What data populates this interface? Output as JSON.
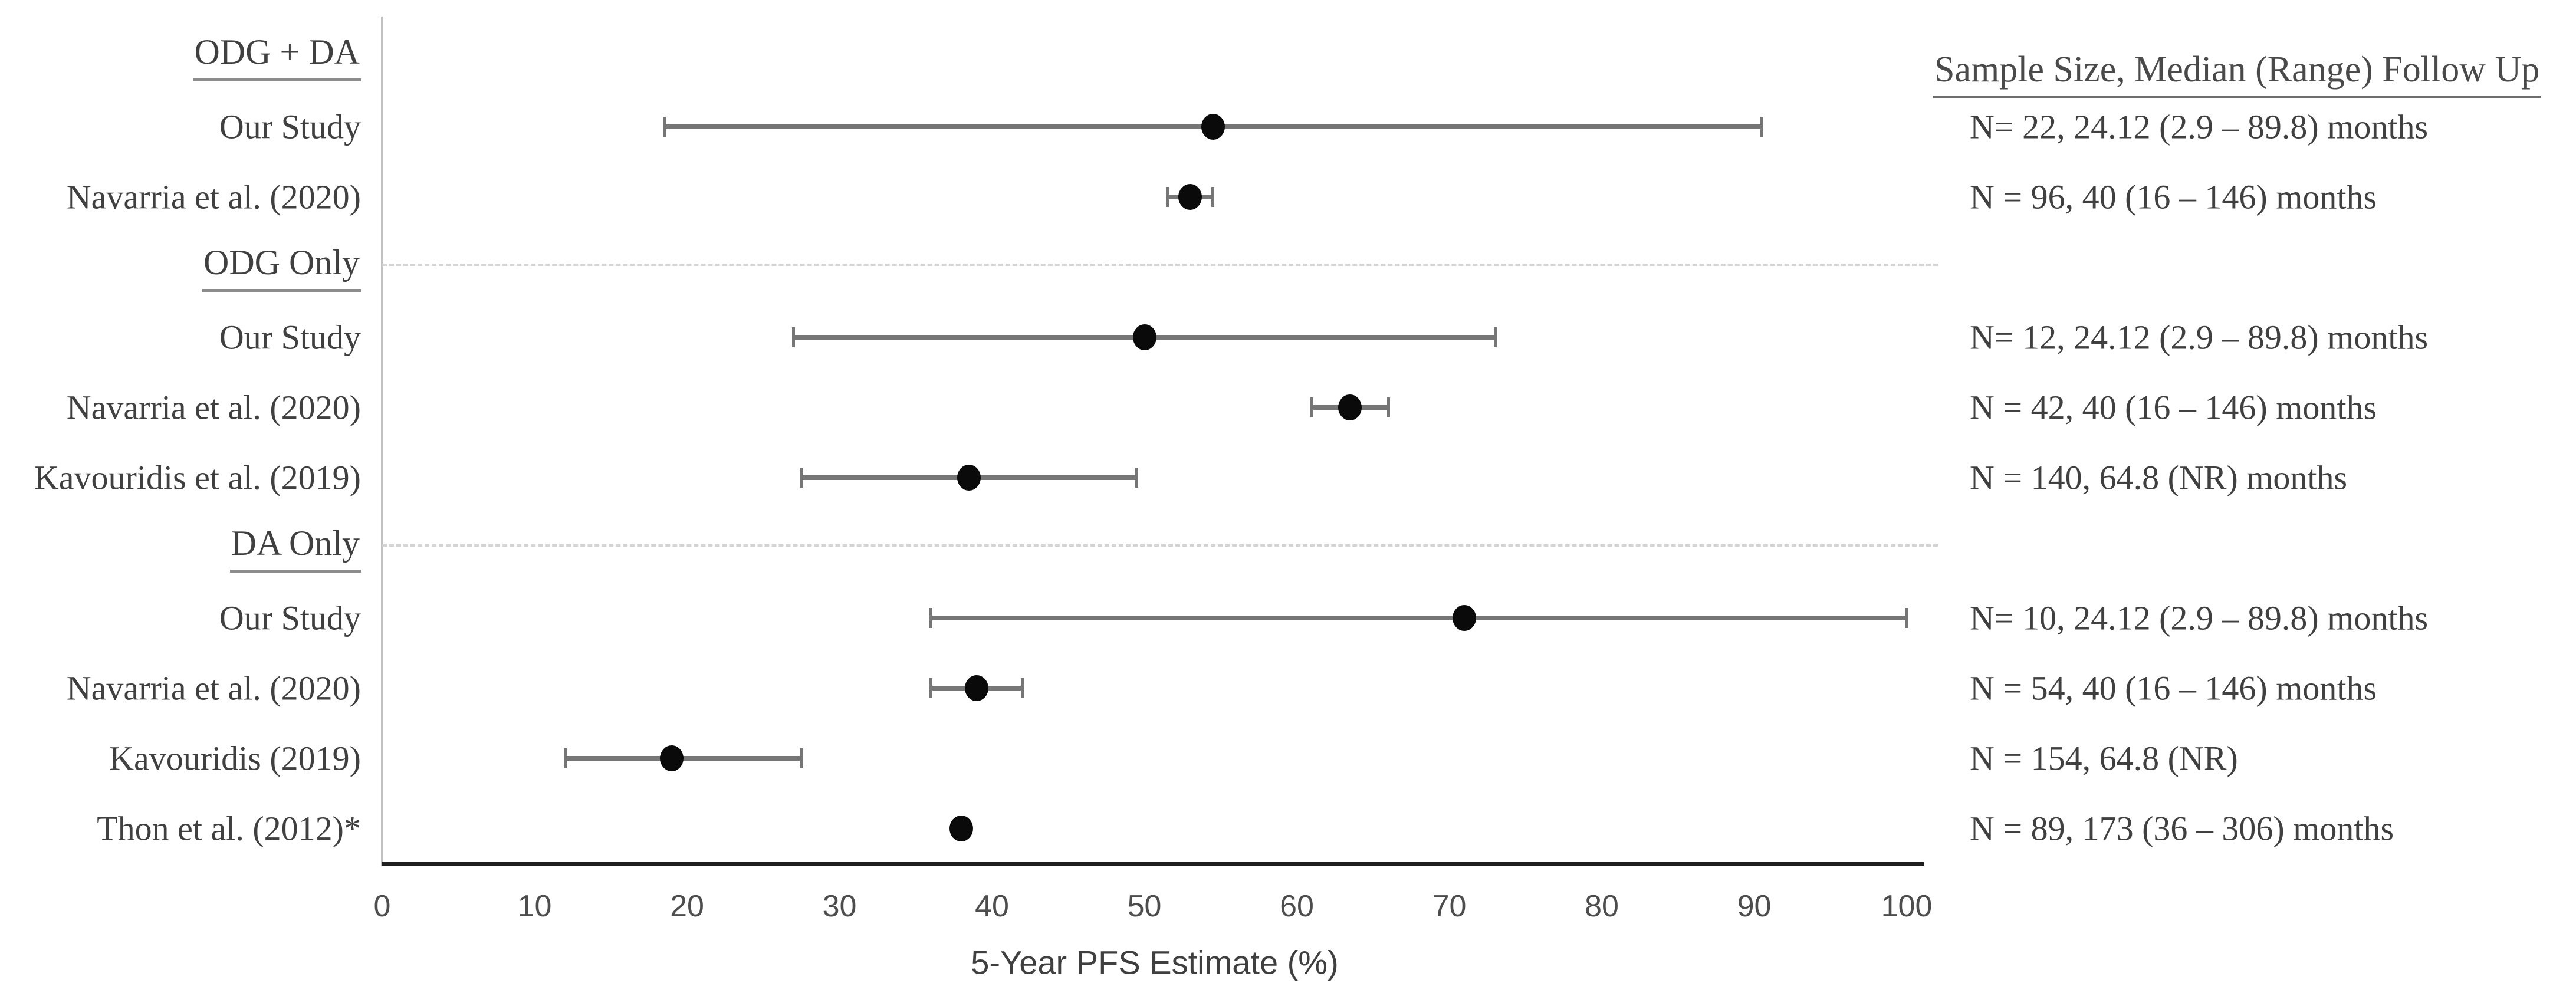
{
  "chart_data": {
    "type": "scatter",
    "subtype": "forest-plot",
    "title": "",
    "xlabel": "5-Year PFS Estimate (%)",
    "ylabel": "",
    "xlim": [
      0,
      100
    ],
    "xticks": [
      "0",
      "10",
      "20",
      "30",
      "40",
      "50",
      "60",
      "70",
      "80",
      "90",
      "100"
    ],
    "grid": false,
    "legend": "none",
    "right_column_header": "Sample Size, Median (Range) Follow Up",
    "marker_color": "#0a0a0a",
    "error_bar_color": "#767676",
    "separator_color": "#d4d4d4",
    "axis_color": "#1f1f1f",
    "groups": [
      {
        "label": "ODG + DA",
        "studies": [
          {
            "label": "Our Study",
            "estimate": 54.5,
            "ci_low": 18.5,
            "ci_high": 90.5,
            "followup": "N= 22, 24.12 (2.9 – 89.8) months"
          },
          {
            "label": "Navarria et al. (2020)",
            "estimate": 53,
            "ci_low": 51.5,
            "ci_high": 54.5,
            "followup": "N = 96, 40 (16 – 146) months"
          }
        ]
      },
      {
        "label": "ODG Only",
        "studies": [
          {
            "label": "Our Study",
            "estimate": 50,
            "ci_low": 27,
            "ci_high": 73,
            "followup": "N= 12, 24.12 (2.9 – 89.8) months"
          },
          {
            "label": "Navarria et al. (2020)",
            "estimate": 63.5,
            "ci_low": 61,
            "ci_high": 66,
            "followup": "N = 42, 40 (16 – 146) months"
          },
          {
            "label": "Kavouridis et al. (2019)",
            "estimate": 38.5,
            "ci_low": 27.5,
            "ci_high": 49.5,
            "followup": "N = 140, 64.8 (NR) months"
          }
        ]
      },
      {
        "label": "DA Only",
        "studies": [
          {
            "label": "Our Study",
            "estimate": 71,
            "ci_low": 36,
            "ci_high": 100,
            "followup": "N= 10, 24.12 (2.9 – 89.8) months"
          },
          {
            "label": "Navarria et al. (2020)",
            "estimate": 39,
            "ci_low": 36,
            "ci_high": 42,
            "followup": "N = 54, 40 (16 – 146) months"
          },
          {
            "label": "Kavouridis (2019)",
            "estimate": 19,
            "ci_low": 12,
            "ci_high": 27.5,
            "followup": "N = 154, 64.8 (NR)"
          },
          {
            "label": "Thon et al. (2012)*",
            "estimate": 38,
            "ci_low": null,
            "ci_high": null,
            "followup": "N = 89, 173 (36 – 306) months"
          }
        ]
      }
    ]
  }
}
